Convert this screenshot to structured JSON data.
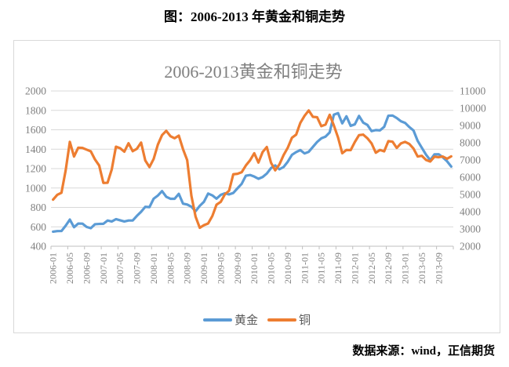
{
  "page": {
    "title": "图：2006-2013 年黄金和铜走势",
    "source": "数据来源：wind，正信期货"
  },
  "colors": {
    "gold_line": "#5B9BD5",
    "copper_line": "#ED7D31",
    "gridline": "#d9d9d9",
    "axis_line": "#bfbfbf",
    "axis_label": "#808080",
    "chart_title": "#7f7f7f",
    "legend_text": "#595959"
  },
  "chart_data": {
    "type": "line",
    "title": "2006-2013黄金和铜走势",
    "legend_position": "bottom",
    "grid": true,
    "x_tick_labels": [
      "2006-01",
      "2006-05",
      "2006-09",
      "2007-01",
      "2007-05",
      "2007-09",
      "2008-01",
      "2008-05",
      "2008-09",
      "2009-01",
      "2009-05",
      "2009-09",
      "2010-01",
      "2010-05",
      "2010-09",
      "2011-01",
      "2011-05",
      "2011-09",
      "2012-01",
      "2012-05",
      "2012-09",
      "2013-01",
      "2013-05",
      "2013-09"
    ],
    "x_label_interval_months": 4,
    "months": [
      "2006-01",
      "2006-02",
      "2006-03",
      "2006-04",
      "2006-05",
      "2006-06",
      "2006-07",
      "2006-08",
      "2006-09",
      "2006-10",
      "2006-11",
      "2006-12",
      "2007-01",
      "2007-02",
      "2007-03",
      "2007-04",
      "2007-05",
      "2007-06",
      "2007-07",
      "2007-08",
      "2007-09",
      "2007-10",
      "2007-11",
      "2007-12",
      "2008-01",
      "2008-02",
      "2008-03",
      "2008-04",
      "2008-05",
      "2008-06",
      "2008-07",
      "2008-08",
      "2008-09",
      "2008-10",
      "2008-11",
      "2008-12",
      "2009-01",
      "2009-02",
      "2009-03",
      "2009-04",
      "2009-05",
      "2009-06",
      "2009-07",
      "2009-08",
      "2009-09",
      "2009-10",
      "2009-11",
      "2009-12",
      "2010-01",
      "2010-02",
      "2010-03",
      "2010-04",
      "2010-05",
      "2010-06",
      "2010-07",
      "2010-08",
      "2010-09",
      "2010-10",
      "2010-11",
      "2010-12",
      "2011-01",
      "2011-02",
      "2011-03",
      "2011-04",
      "2011-05",
      "2011-06",
      "2011-07",
      "2011-08",
      "2011-09",
      "2011-10",
      "2011-11",
      "2011-12",
      "2012-01",
      "2012-02",
      "2012-03",
      "2012-04",
      "2012-05",
      "2012-06",
      "2012-07",
      "2012-08",
      "2012-09",
      "2012-10",
      "2012-11",
      "2012-12",
      "2013-01",
      "2013-02",
      "2013-03",
      "2013-04",
      "2013-05",
      "2013-06",
      "2013-07",
      "2013-08",
      "2013-09",
      "2013-10",
      "2013-11",
      "2013-12"
    ],
    "axes": {
      "left": {
        "min": 400,
        "max": 2000,
        "step": 200,
        "labels": [
          400,
          600,
          800,
          1000,
          1200,
          1400,
          1600,
          1800,
          2000
        ],
        "series": "黄金"
      },
      "right": {
        "min": 2000,
        "max": 11000,
        "step": 1000,
        "labels": [
          2000,
          3000,
          4000,
          5000,
          6000,
          7000,
          8000,
          9000,
          10000,
          11000
        ],
        "series": "铜"
      }
    },
    "series": [
      {
        "name": "黄金",
        "axis": "left",
        "color": "#5B9BD5",
        "values": [
          550,
          556,
          557,
          611,
          675,
          596,
          634,
          633,
          599,
          586,
          627,
          630,
          631,
          665,
          655,
          679,
          667,
          655,
          665,
          665,
          713,
          755,
          806,
          803,
          890,
          922,
          968,
          910,
          889,
          889,
          940,
          839,
          830,
          807,
          761,
          816,
          858,
          943,
          924,
          890,
          929,
          946,
          934,
          949,
          997,
          1043,
          1127,
          1134,
          1118,
          1095,
          1113,
          1149,
          1205,
          1233,
          1193,
          1216,
          1271,
          1342,
          1370,
          1391,
          1356,
          1373,
          1424,
          1474,
          1512,
          1529,
          1573,
          1756,
          1772,
          1666,
          1739,
          1641,
          1656,
          1743,
          1674,
          1650,
          1586,
          1597,
          1594,
          1630,
          1745,
          1747,
          1721,
          1688,
          1671,
          1628,
          1593,
          1485,
          1414,
          1343,
          1287,
          1347,
          1348,
          1316,
          1276,
          1221
        ]
      },
      {
        "name": "铜",
        "axis": "right",
        "color": "#ED7D31",
        "values": [
          4700,
          4980,
          5100,
          6390,
          8050,
          7200,
          7710,
          7700,
          7600,
          7500,
          7030,
          6680,
          5670,
          5680,
          6450,
          7770,
          7680,
          7480,
          7970,
          7510,
          7650,
          8010,
          6970,
          6590,
          7060,
          7890,
          8440,
          8690,
          8380,
          8260,
          8410,
          7630,
          6990,
          4930,
          3720,
          3070,
          3220,
          3320,
          3750,
          4410,
          4570,
          5010,
          5220,
          6170,
          6200,
          6290,
          6680,
          6980,
          7390,
          6850,
          7460,
          7750,
          6840,
          6400,
          6740,
          7280,
          7710,
          8290,
          8470,
          9150,
          9560,
          9870,
          9500,
          9480,
          8960,
          9050,
          9620,
          9000,
          8300,
          7390,
          7580,
          7570,
          8040,
          8440,
          8470,
          8260,
          7960,
          7420,
          7580,
          7500,
          8090,
          8060,
          7700,
          7960,
          8050,
          7930,
          7660,
          7200,
          7240,
          7000,
          6910,
          7190,
          7160,
          7200,
          7070,
          7210
        ]
      }
    ]
  }
}
